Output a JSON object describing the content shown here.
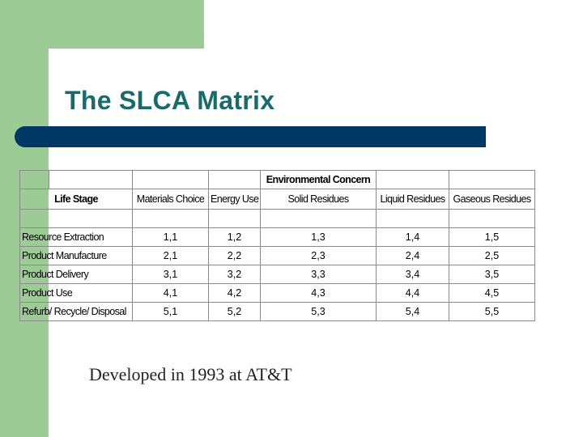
{
  "slide": {
    "title": "The SLCA Matrix",
    "footer": "Developed in 1993 at AT&T",
    "colors": {
      "green": "#9dcb96",
      "title_text": "#1b6a6b",
      "bar": "#003865"
    }
  },
  "matrix": {
    "group_header": "Environmental Concern",
    "row_header": "Life Stage",
    "columns": [
      "Materials Choice",
      "Energy Use",
      "Solid Residues",
      "Liquid Residues",
      "Gaseous Residues"
    ],
    "rows": [
      {
        "stage": "Resource Extraction",
        "cells": [
          "1,1",
          "1,2",
          "1,3",
          "1,4",
          "1,5"
        ]
      },
      {
        "stage": "Product Manufacture",
        "cells": [
          "2,1",
          "2,2",
          "2,3",
          "2,4",
          "2,5"
        ]
      },
      {
        "stage": "Product Delivery",
        "cells": [
          "3,1",
          "3,2",
          "3,3",
          "3,4",
          "3,5"
        ]
      },
      {
        "stage": "Product Use",
        "cells": [
          "4,1",
          "4,2",
          "4,3",
          "4,4",
          "4,5"
        ]
      },
      {
        "stage": "Refurb/ Recycle/ Disposal",
        "cells": [
          "5,1",
          "5,2",
          "5,3",
          "5,4",
          "5,5"
        ]
      }
    ]
  }
}
